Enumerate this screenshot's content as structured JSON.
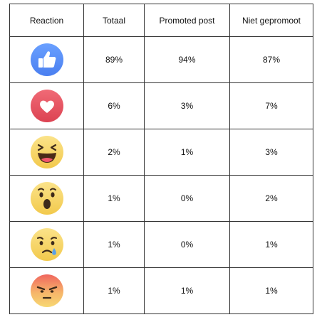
{
  "table": {
    "headers": [
      "Reaction",
      "Totaal",
      "Promoted post",
      "Niet gepromoot"
    ],
    "rows": [
      {
        "icon": "like-icon",
        "values": [
          "89%",
          "94%",
          "87%"
        ]
      },
      {
        "icon": "love-icon",
        "values": [
          "6%",
          "3%",
          "7%"
        ]
      },
      {
        "icon": "haha-icon",
        "values": [
          "2%",
          "1%",
          "3%"
        ]
      },
      {
        "icon": "wow-icon",
        "values": [
          "1%",
          "0%",
          "2%"
        ]
      },
      {
        "icon": "sad-icon",
        "values": [
          "1%",
          "0%",
          "1%"
        ]
      },
      {
        "icon": "angry-icon",
        "values": [
          "1%",
          "1%",
          "1%"
        ]
      }
    ]
  },
  "colors": {
    "like_blue": "#5890FF",
    "love_red": "#E5505F",
    "emoji_yellow": "#F7D872",
    "angry_red": "#F0665E"
  }
}
